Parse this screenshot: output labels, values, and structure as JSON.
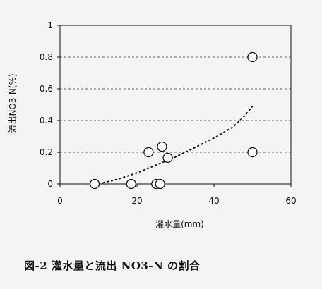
{
  "chart_data": {
    "type": "scatter",
    "xlabel": "灌水量(mm)",
    "ylabel": "流出NO3-N(%)",
    "xlim": [
      0,
      60
    ],
    "ylim": [
      0,
      1
    ],
    "x_ticks": [
      "0",
      "20",
      "40",
      "60"
    ],
    "y_ticks": [
      "0",
      "0.2",
      "0.4",
      "0.6",
      "0.8",
      "1"
    ],
    "grid": "horizontal-dashed",
    "points": [
      {
        "x": 9,
        "y": 0.0
      },
      {
        "x": 18.5,
        "y": 0.0
      },
      {
        "x": 23,
        "y": 0.2
      },
      {
        "x": 25,
        "y": 0.0
      },
      {
        "x": 26,
        "y": 0.0
      },
      {
        "x": 26.5,
        "y": 0.235
      },
      {
        "x": 28,
        "y": 0.165
      },
      {
        "x": 50,
        "y": 0.8
      },
      {
        "x": 50,
        "y": 0.2
      }
    ],
    "trend": [
      {
        "x": 10,
        "y": 0.0
      },
      {
        "x": 15,
        "y": 0.03
      },
      {
        "x": 20,
        "y": 0.07
      },
      {
        "x": 25,
        "y": 0.12
      },
      {
        "x": 30,
        "y": 0.17
      },
      {
        "x": 35,
        "y": 0.23
      },
      {
        "x": 40,
        "y": 0.29
      },
      {
        "x": 45,
        "y": 0.36
      },
      {
        "x": 48,
        "y": 0.43
      },
      {
        "x": 50,
        "y": 0.49
      }
    ]
  },
  "caption": "図-2 灌水量と流出 NO3-N の割合"
}
